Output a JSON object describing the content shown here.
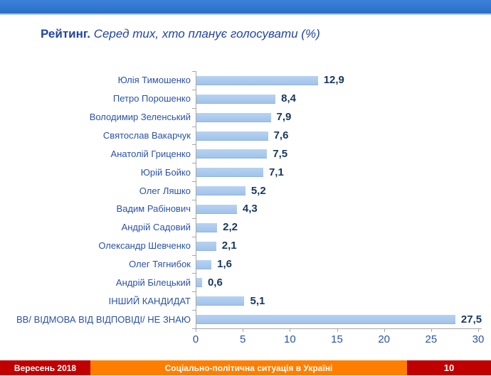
{
  "header": {
    "band_color": "#2e74cc"
  },
  "title": {
    "bold": "Рейтинг.",
    "italic": " Серед тих, хто планує голосувати (%)"
  },
  "chart_data": {
    "type": "bar",
    "orientation": "horizontal",
    "title": "Рейтинг. Серед тих, хто планує голосувати (%)",
    "categories": [
      "Юлія Тимошенко",
      "Петро Порошенко",
      "Володимир Зеленський",
      "Святослав Вакарчук",
      "Анатолій Гриценко",
      "Юрій Бойко",
      "Олег Ляшко",
      "Вадим Рабінович",
      "Андрій Садовий",
      "Олександр Шевченко",
      "Олег Тягнибок",
      "Андрій Білецький",
      "ІНШИЙ КАНДИДАТ",
      "ВВ/ ВІДМОВА ВІД ВІДПОВІДІ/ НЕ ЗНАЮ"
    ],
    "values": [
      12.9,
      8.4,
      7.9,
      7.6,
      7.5,
      7.1,
      5.2,
      4.3,
      2.2,
      2.1,
      1.6,
      0.6,
      5.1,
      27.5
    ],
    "value_labels": [
      "12,9",
      "8,4",
      "7,9",
      "7,6",
      "7,5",
      "7,1",
      "5,2",
      "4,3",
      "2,2",
      "2,1",
      "1,6",
      "0,6",
      "5,1",
      "27,5"
    ],
    "xlabel": "",
    "ylabel": "",
    "xlim": [
      0,
      30
    ],
    "x_ticks": [
      0,
      5,
      10,
      15,
      20,
      25,
      30
    ],
    "x_tick_labels": [
      "0",
      "5",
      "10",
      "15",
      "20",
      "25",
      "30"
    ],
    "grid": false,
    "legend": null,
    "bar_color": "#a8c7ec",
    "axis_color": "#a6a6a6",
    "label_color": "#2a52a8",
    "value_color": "#17375e"
  },
  "footer": {
    "left": "Вересень 2018",
    "center": "Соціально-політична ситуація в Україні",
    "page": "10",
    "left_bg": "#c00000",
    "center_bg": "#ff7e00",
    "page_bg": "#c00000"
  }
}
